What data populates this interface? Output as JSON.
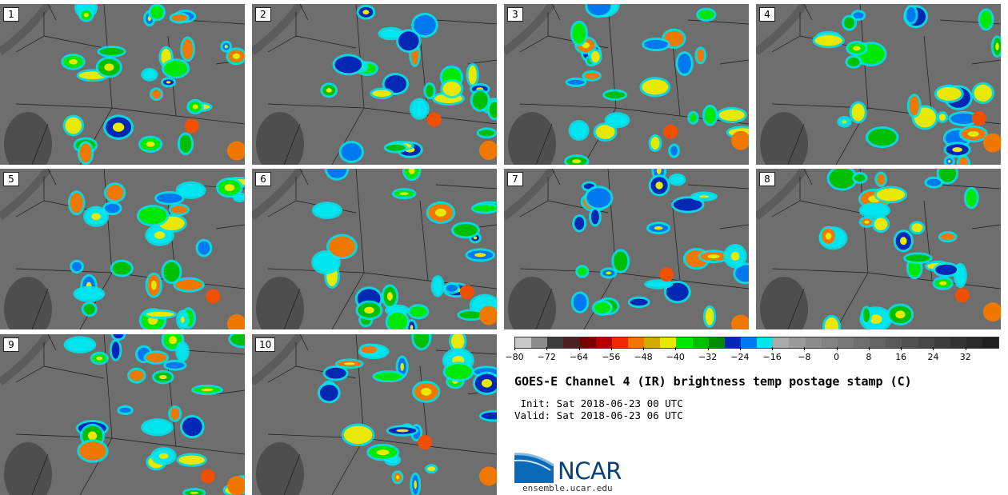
{
  "panels": [
    {
      "label": "1"
    },
    {
      "label": "2"
    },
    {
      "label": "3"
    },
    {
      "label": "4"
    },
    {
      "label": "5"
    },
    {
      "label": "6"
    },
    {
      "label": "7"
    },
    {
      "label": "8"
    },
    {
      "label": "9"
    },
    {
      "label": "10"
    }
  ],
  "colorbar": {
    "colors": [
      "#c8c8c8",
      "#8c8c8c",
      "#3c3c3c",
      "#502020",
      "#780000",
      "#b40000",
      "#f02800",
      "#f07800",
      "#d4aa00",
      "#e8e800",
      "#00e800",
      "#00be00",
      "#008c00",
      "#0028b4",
      "#0078f0",
      "#00e6f0",
      "#aaaaaa",
      "#9a9a9a",
      "#8c8c8c",
      "#828282",
      "#787878",
      "#6e6e6e",
      "#646464",
      "#5a5a5a",
      "#505050",
      "#464646",
      "#3c3c3c",
      "#323232",
      "#282828",
      "#1e1e1e"
    ],
    "tick_labels": [
      "−80",
      "−72",
      "−64",
      "−56",
      "−48",
      "−40",
      "−32",
      "−24",
      "−16",
      "−8",
      "0",
      "8",
      "16",
      "24",
      "32"
    ]
  },
  "title": "GOES-E Channel 4 (IR) brightness temp postage stamp (C)",
  "init": " Init: Sat 2018-06-23 00 UTC",
  "valid": "Valid: Sat 2018-06-23 06 UTC",
  "logo": {
    "text": "NCAR",
    "site": "ensemble.ucar.edu"
  },
  "colors": {
    "background_gray": "#6e6e6e",
    "brand": "#0a3f77"
  }
}
